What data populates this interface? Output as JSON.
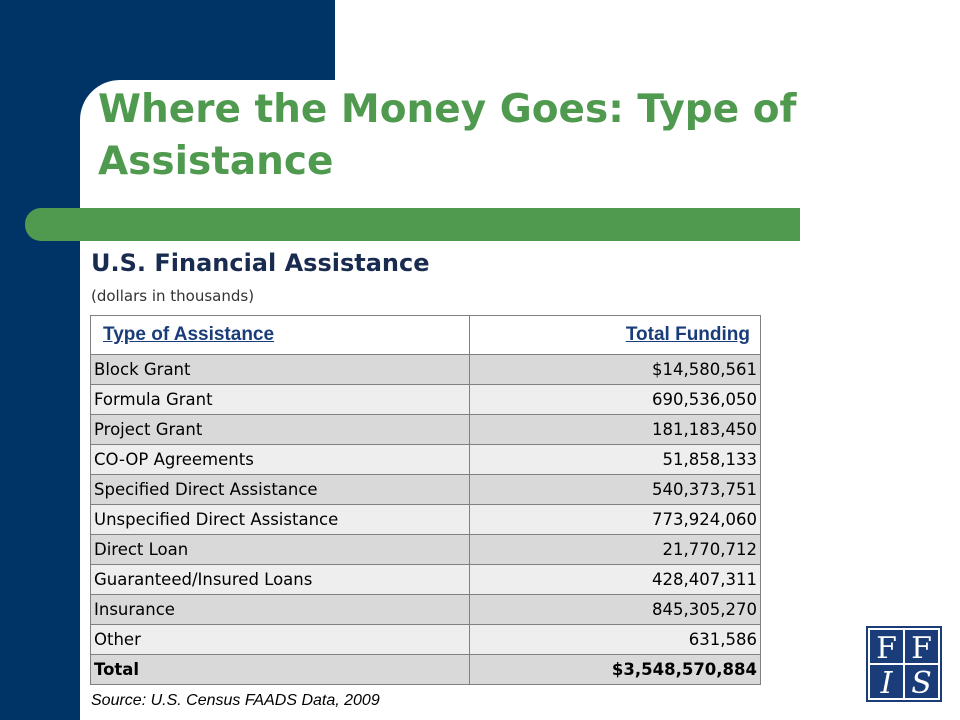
{
  "title": "Where the Money Goes: Type of Assistance",
  "subtitle": "U.S. Financial Assistance",
  "units": "(dollars in thousands)",
  "table": {
    "headers": {
      "type": "Type of Assistance",
      "funding": "Total Funding"
    },
    "rows": [
      {
        "type": "Block Grant",
        "funding": "$14,580,561"
      },
      {
        "type": "Formula Grant",
        "funding": "690,536,050"
      },
      {
        "type": "Project Grant",
        "funding": "181,183,450"
      },
      {
        "type": "CO-OP Agreements",
        "funding": "51,858,133"
      },
      {
        "type": "Specified Direct Assistance",
        "funding": "540,373,751"
      },
      {
        "type": "Unspecified Direct Assistance",
        "funding": "773,924,060"
      },
      {
        "type": "Direct Loan",
        "funding": "21,770,712"
      },
      {
        "type": "Guaranteed/Insured Loans",
        "funding": "428,407,311"
      },
      {
        "type": "Insurance",
        "funding": "845,305,270"
      },
      {
        "type": "Other",
        "funding": "631,586"
      }
    ],
    "total": {
      "type": "Total",
      "funding": "$3,548,570,884"
    }
  },
  "source": "Source: U.S. Census FAADS Data, 2009",
  "logo": {
    "letters": [
      "F",
      "F",
      "I",
      "S"
    ],
    "icon": "ffis-logo"
  },
  "colors": {
    "navy": "#003366",
    "green": "#4f9a4f",
    "header_text": "#1a3d7a"
  }
}
